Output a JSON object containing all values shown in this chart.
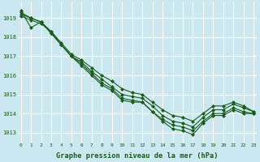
{
  "title": "Graphe pression niveau de la mer (hPa)",
  "bg_color": "#cbe8f0",
  "grid_color": "#ffffff",
  "line_color": "#1a5c1a",
  "marker_color": "#1a5c1a",
  "xlim": [
    -0.3,
    23.3
  ],
  "ylim": [
    1012.5,
    1019.8
  ],
  "yticks": [
    1013,
    1014,
    1015,
    1016,
    1017,
    1018,
    1019
  ],
  "xticks": [
    0,
    1,
    2,
    3,
    4,
    5,
    6,
    7,
    8,
    9,
    10,
    11,
    12,
    13,
    14,
    15,
    16,
    17,
    18,
    19,
    20,
    21,
    22,
    23
  ],
  "series": [
    [
      1019.4,
      1018.5,
      1018.8,
      1018.2,
      1017.6,
      1017.0,
      1016.5,
      1016.0,
      1015.5,
      1015.2,
      1014.7,
      1014.6,
      1014.6,
      1014.1,
      1013.6,
      1013.2,
      1013.1,
      1012.9,
      1013.5,
      1013.9,
      1013.9,
      1014.2,
      1014.0,
      1014.0
    ],
    [
      1019.3,
      1019.0,
      1018.8,
      1018.2,
      1017.6,
      1017.0,
      1016.6,
      1016.1,
      1015.6,
      1015.3,
      1014.8,
      1014.7,
      1014.6,
      1014.1,
      1013.7,
      1013.4,
      1013.3,
      1013.1,
      1013.6,
      1014.0,
      1014.0,
      1014.3,
      1014.1,
      1014.0
    ],
    [
      1019.2,
      1019.0,
      1018.8,
      1018.3,
      1017.6,
      1017.0,
      1016.7,
      1016.2,
      1015.8,
      1015.4,
      1015.0,
      1014.9,
      1014.8,
      1014.4,
      1013.9,
      1013.6,
      1013.5,
      1013.3,
      1013.8,
      1014.2,
      1014.2,
      1014.5,
      1014.3,
      1014.1
    ],
    [
      1019.1,
      1018.9,
      1018.7,
      1018.3,
      1017.7,
      1017.1,
      1016.8,
      1016.4,
      1016.0,
      1015.7,
      1015.3,
      1015.1,
      1015.0,
      1014.6,
      1014.2,
      1013.9,
      1013.8,
      1013.6,
      1014.0,
      1014.4,
      1014.4,
      1014.6,
      1014.4,
      1014.1
    ]
  ]
}
